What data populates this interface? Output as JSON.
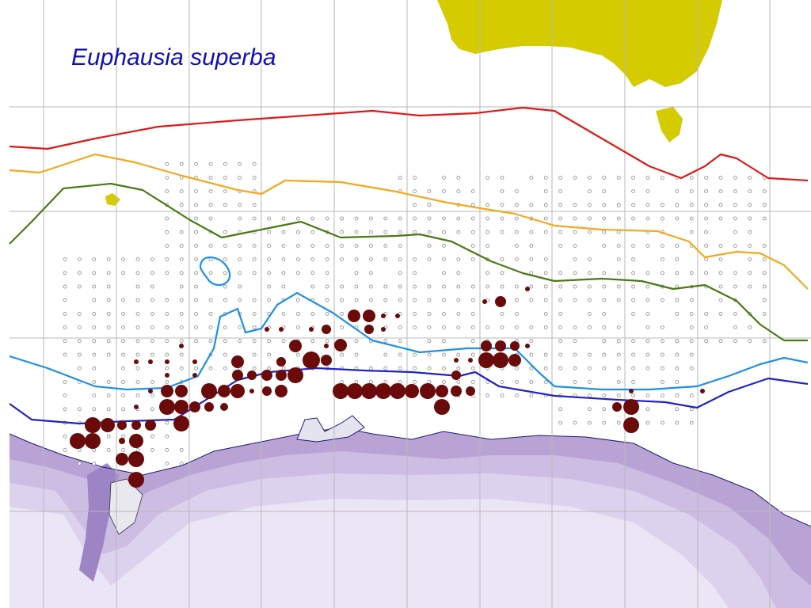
{
  "title": "Euphausia superba"
}
